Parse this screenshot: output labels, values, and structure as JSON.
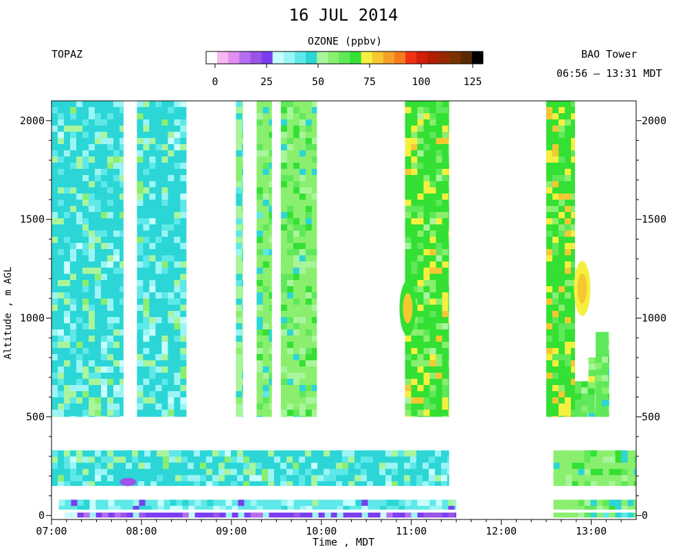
{
  "title": "16 JUL 2014",
  "left_label": "TOPAZ",
  "right_label": "BAO Tower",
  "time_range": "06:56 – 13:31 MDT",
  "colorbar": {
    "title": "OZONE (ppbv)",
    "ticks": [
      "0",
      "25",
      "50",
      "75",
      "100",
      "125"
    ],
    "tick_values": [
      0,
      25,
      50,
      75,
      100,
      125
    ],
    "range": [
      0,
      125
    ],
    "colors": [
      "#ffffff",
      "#f5b8f0",
      "#e08ff0",
      "#b56ef0",
      "#9a55e8",
      "#7a3ef0",
      "#c8ffff",
      "#9cf5f5",
      "#5fe8e8",
      "#2cd6d6",
      "#a8f59c",
      "#8aef6e",
      "#5fe85a",
      "#33e033",
      "#f5f040",
      "#f5c832",
      "#f5a028",
      "#f57a1e",
      "#f03214",
      "#d21e0a",
      "#b41e00",
      "#962800",
      "#783200",
      "#5a2800",
      "#000000"
    ]
  },
  "chart_data": {
    "type": "heatmap",
    "title": "16 JUL 2014",
    "variable": "OZONE (ppbv)",
    "xlabel": "Time , MDT",
    "ylabel": "Altitude , m AGL",
    "x_ticks": [
      "07:00",
      "08:00",
      "09:00",
      "10:00",
      "11:00",
      "12:00",
      "13:00"
    ],
    "xlim_hours": [
      7.0,
      13.5
    ],
    "y_ticks": [
      0,
      500,
      1000,
      1500,
      2000
    ],
    "ylim": [
      -20,
      2100
    ],
    "topaz_blocks": [
      {
        "start": 7.0,
        "end": 7.8,
        "alt_min": 500,
        "alt_max": 2100,
        "dominant_ppbv": 45
      },
      {
        "start": 7.95,
        "end": 8.5,
        "alt_min": 500,
        "alt_max": 2100,
        "dominant_ppbv": 45
      },
      {
        "start": 9.05,
        "end": 9.13,
        "alt_min": 500,
        "alt_max": 2100,
        "dominant_ppbv": 50
      },
      {
        "start": 9.28,
        "end": 9.45,
        "alt_min": 500,
        "alt_max": 2100,
        "dominant_ppbv": 55
      },
      {
        "start": 9.55,
        "end": 9.95,
        "alt_min": 500,
        "alt_max": 2100,
        "dominant_ppbv": 58
      },
      {
        "start": 10.93,
        "end": 11.42,
        "alt_min": 500,
        "alt_max": 2100,
        "dominant_ppbv": 65
      },
      {
        "start": 12.5,
        "end": 12.82,
        "alt_min": 500,
        "alt_max": 2100,
        "dominant_ppbv": 68
      },
      {
        "start": 12.82,
        "end": 12.97,
        "alt_min": 500,
        "alt_max": 680,
        "dominant_ppbv": 60
      },
      {
        "start": 12.97,
        "end": 13.05,
        "alt_min": 500,
        "alt_max": 800,
        "dominant_ppbv": 60
      },
      {
        "start": 13.05,
        "end": 13.2,
        "alt_min": 500,
        "alt_max": 930,
        "dominant_ppbv": 60
      }
    ],
    "bao_blocks": [
      {
        "start": 7.0,
        "end": 11.42,
        "alt_min": 150,
        "alt_max": 330,
        "dominant_ppbv": 45
      },
      {
        "start": 12.58,
        "end": 13.5,
        "alt_min": 150,
        "alt_max": 330,
        "dominant_ppbv": 58
      },
      {
        "start": 7.08,
        "end": 11.5,
        "alt_min": 30,
        "alt_max": 80,
        "dominant_ppbv": 40
      },
      {
        "start": 12.58,
        "end": 13.5,
        "alt_min": 30,
        "alt_max": 80,
        "dominant_ppbv": 55
      },
      {
        "start": 7.15,
        "end": 11.5,
        "alt_min": -10,
        "alt_max": 15,
        "dominant_ppbv": 28
      },
      {
        "start": 12.58,
        "end": 13.5,
        "alt_min": -10,
        "alt_max": 15,
        "dominant_ppbv": 55
      }
    ],
    "features": [
      {
        "description": "yellow maximum",
        "time": 12.9,
        "altitude": 1150,
        "ppbv": 78
      },
      {
        "description": "yellow maximum",
        "time": 10.96,
        "altitude": 1050,
        "ppbv": 75
      },
      {
        "description": "purple minimum",
        "time": 7.85,
        "altitude": 170,
        "ppbv": 20
      }
    ]
  }
}
